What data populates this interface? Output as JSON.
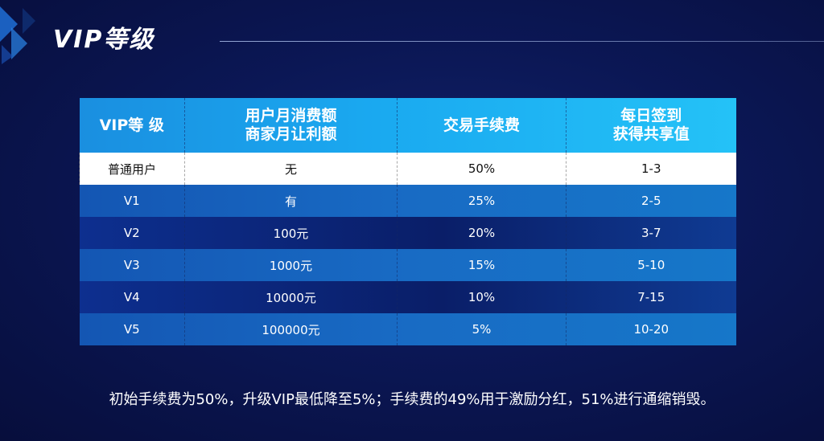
{
  "page": {
    "title": "VIP等级",
    "footnote": "初始手续费为50%，升级VIP最低降至5%；手续费的49%用于激励分红，51%进行通缩销毁。"
  },
  "table": {
    "headers": {
      "level": "VIP等 级",
      "spend_line1": "用户月消费额",
      "spend_line2": "商家月让利额",
      "fee": "交易手续费",
      "share_line1": "每日签到",
      "share_line2": "获得共享值"
    },
    "rows": [
      {
        "level": "普通用户",
        "spend": "无",
        "fee": "50%",
        "share": "1-3"
      },
      {
        "level": "V1",
        "spend": "有",
        "fee": "25%",
        "share": "2-5"
      },
      {
        "level": "V2",
        "spend": "100元",
        "fee": "20%",
        "share": "3-7"
      },
      {
        "level": "V3",
        "spend": "1000元",
        "fee": "15%",
        "share": "5-10"
      },
      {
        "level": "V4",
        "spend": "10000元",
        "fee": "10%",
        "share": "7-15"
      },
      {
        "level": "V5",
        "spend": "100000元",
        "fee": "5%",
        "share": "10-20"
      }
    ]
  },
  "colors": {
    "background": "#0b1755",
    "header": "#1aa9f0",
    "row_light": "#186bc4",
    "row_dark": "#0a1e68"
  }
}
